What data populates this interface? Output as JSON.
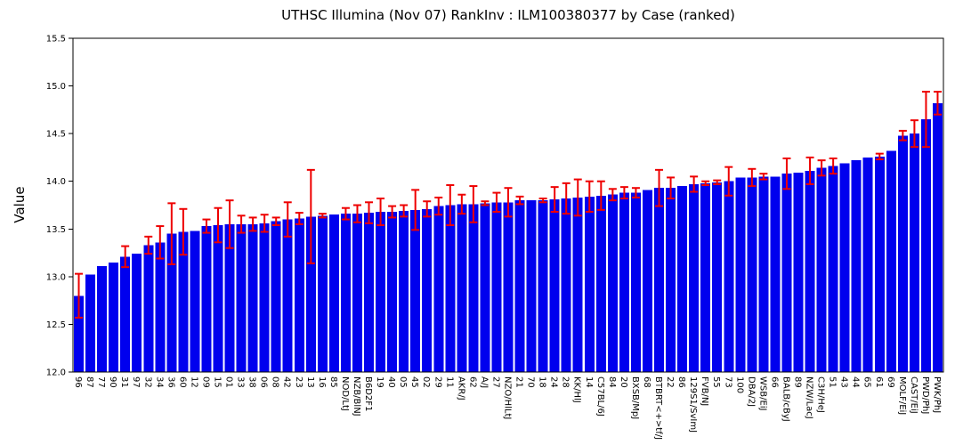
{
  "page": {
    "background": "#ffffff"
  },
  "chart": {
    "title": "UTHSC Illumina (Nov 07) RankInv : ILM100380377 by Case (ranked)",
    "ylabel": "Value"
  },
  "chart_data": {
    "type": "bar",
    "title": "UTHSC Illumina (Nov 07) RankInv : ILM100380377 by Case (ranked)",
    "xlabel": "",
    "ylabel": "Value",
    "ylim": [
      12.0,
      15.5
    ],
    "y_ticks": [
      "12.0",
      "12.5",
      "13.0",
      "13.5",
      "14.0",
      "14.5",
      "15.0",
      "15.5"
    ],
    "grid": false,
    "legend": null,
    "bar_color": "#0000ee",
    "error_color": "#ee0000",
    "axis_color": "#000000",
    "categories": [
      "96",
      "87",
      "77",
      "90",
      "31",
      "97",
      "32",
      "34",
      "36",
      "60",
      "12",
      "09",
      "15",
      "01",
      "33",
      "38",
      "06",
      "08",
      "42",
      "23",
      "13",
      "16",
      "85",
      "NOD/LtJ",
      "NZB/BlNJ",
      "B6D2F1",
      "19",
      "40",
      "05",
      "45",
      "02",
      "29",
      "11",
      "AKR/J",
      "62",
      "A/J",
      "27",
      "NZO/HlLtJ",
      "21",
      "70",
      "18",
      "24",
      "28",
      "KK/HlJ",
      "14",
      "C57BL/6J",
      "84",
      "20",
      "BXSB/MpJ",
      "68",
      "BTBRT<+>tf/J",
      "22",
      "86",
      "129S1/SvImJ",
      "FVB/NJ",
      "55",
      "73",
      "100",
      "DBA/2J",
      "WSB/EiJ",
      "66",
      "BALB/cByJ",
      "89",
      "NZW/LacJ",
      "C3H/HeJ",
      "51",
      "43",
      "44",
      "65",
      "61",
      "69",
      "MOLF/EiJ",
      "CAST/EiJ",
      "PWD/PhJ",
      "PWK/PhJ"
    ],
    "values": [
      12.8,
      13.02,
      13.11,
      13.15,
      13.21,
      13.24,
      13.33,
      13.36,
      13.45,
      13.47,
      13.48,
      13.53,
      13.54,
      13.55,
      13.55,
      13.55,
      13.56,
      13.58,
      13.6,
      13.61,
      13.63,
      13.64,
      13.65,
      13.66,
      13.66,
      13.67,
      13.68,
      13.68,
      13.69,
      13.7,
      13.71,
      13.74,
      13.75,
      13.76,
      13.76,
      13.77,
      13.78,
      13.78,
      13.8,
      13.8,
      13.8,
      13.81,
      13.82,
      13.83,
      13.84,
      13.85,
      13.86,
      13.88,
      13.88,
      13.91,
      13.93,
      13.93,
      13.95,
      13.97,
      13.98,
      13.99,
      14.0,
      14.04,
      14.04,
      14.05,
      14.05,
      14.08,
      14.09,
      14.11,
      14.14,
      14.16,
      14.19,
      14.22,
      14.25,
      14.26,
      14.32,
      14.48,
      14.5,
      14.65,
      14.82
    ],
    "errors": [
      0.23,
      0,
      0,
      0,
      0.11,
      0,
      0.09,
      0.17,
      0.32,
      0.24,
      0,
      0.07,
      0.18,
      0.25,
      0.09,
      0.07,
      0.09,
      0.04,
      0.18,
      0.06,
      0.49,
      0.02,
      0,
      0.06,
      0.09,
      0.11,
      0.14,
      0.06,
      0.06,
      0.21,
      0.08,
      0.09,
      0.21,
      0.1,
      0.19,
      0.02,
      0.1,
      0.15,
      0.04,
      0,
      0.02,
      0.13,
      0.16,
      0.19,
      0.16,
      0.15,
      0.06,
      0.06,
      0.05,
      0,
      0.19,
      0.11,
      0,
      0.08,
      0.02,
      0.02,
      0.15,
      0,
      0.09,
      0.03,
      0,
      0.16,
      0,
      0.14,
      0.08,
      0.08,
      0,
      0,
      0,
      0.03,
      0,
      0.05,
      0.14,
      0.29,
      0.12
    ]
  }
}
